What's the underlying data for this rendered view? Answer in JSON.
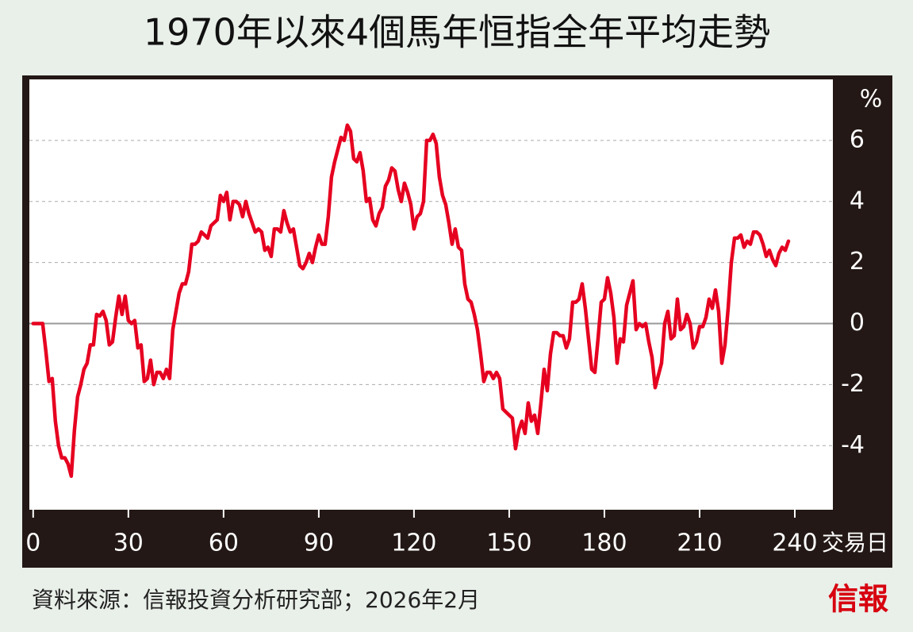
{
  "chart_data": {
    "type": "line",
    "title": "1970年以來4個馬年恒指全年平均走勢",
    "x_label": "交易日",
    "y_label": "%",
    "source": "資料來源：信報投資分析研究部；2026年2月",
    "brand": "信報",
    "color": "#e60020",
    "grid": true,
    "xlim": [
      -1.2,
      252
    ],
    "ylim": [
      -6.1,
      8
    ],
    "xticks": [
      0,
      30,
      60,
      90,
      120,
      150,
      180,
      210,
      240
    ],
    "yticks": [
      -4,
      -2,
      0,
      2,
      4,
      6
    ],
    "x": [
      0,
      1,
      2,
      3,
      4,
      5,
      6,
      7,
      8,
      9,
      10,
      11,
      12,
      13,
      14,
      15,
      16,
      17,
      18,
      19,
      20,
      21,
      22,
      23,
      24,
      25,
      26,
      27,
      28,
      29,
      30,
      31,
      32,
      33,
      34,
      35,
      36,
      37,
      38,
      39,
      40,
      41,
      42,
      43,
      44,
      45,
      46,
      47,
      48,
      49,
      50,
      51,
      52,
      53,
      54,
      55,
      56,
      57,
      58,
      59,
      60,
      61,
      62,
      63,
      64,
      65,
      66,
      67,
      68,
      69,
      70,
      71,
      72,
      73,
      74,
      75,
      76,
      77,
      78,
      79,
      80,
      81,
      82,
      83,
      84,
      85,
      86,
      87,
      88,
      89,
      90,
      91,
      92,
      93,
      94,
      95,
      96,
      97,
      98,
      99,
      100,
      101,
      102,
      103,
      104,
      105,
      106,
      107,
      108,
      109,
      110,
      111,
      112,
      113,
      114,
      115,
      116,
      117,
      118,
      119,
      120,
      121,
      122,
      123,
      124,
      125,
      126,
      127,
      128,
      129,
      130,
      131,
      132,
      133,
      134,
      135,
      136,
      137,
      138,
      139,
      140,
      141,
      142,
      143,
      144,
      145,
      146,
      147,
      148,
      149,
      150,
      151,
      152,
      153,
      154,
      155,
      156,
      157,
      158,
      159,
      160,
      161,
      162,
      163,
      164,
      165,
      166,
      167,
      168,
      169,
      170,
      171,
      172,
      173,
      174,
      175,
      176,
      177,
      178,
      179,
      180,
      181,
      182,
      183,
      184,
      185,
      186,
      187,
      188,
      189,
      190,
      191,
      192,
      193,
      194,
      195,
      196,
      197,
      198,
      199,
      200,
      201,
      202,
      203,
      204,
      205,
      206,
      207,
      208,
      209,
      210,
      211,
      212,
      213,
      214,
      215,
      216,
      217,
      218,
      219,
      220,
      221,
      222,
      223,
      224,
      225,
      226,
      227,
      228,
      229,
      230,
      231,
      232,
      233,
      234,
      235,
      236,
      237,
      238
    ],
    "values": [
      0,
      0,
      0,
      0,
      -0.9,
      -1.9,
      -1.8,
      -3.2,
      -4.0,
      -4.4,
      -4.4,
      -4.6,
      -5.0,
      -3.5,
      -2.4,
      -2.0,
      -1.5,
      -1.3,
      -0.7,
      -0.7,
      0.3,
      0.25,
      0.4,
      0.1,
      -0.7,
      -0.6,
      0.2,
      0.9,
      0.3,
      0.9,
      0.1,
      0.0,
      0.1,
      -0.8,
      -0.7,
      -1.9,
      -1.8,
      -1.2,
      -2.0,
      -1.6,
      -1.6,
      -1.8,
      -1.5,
      -1.8,
      -0.2,
      0.4,
      1.0,
      1.3,
      1.3,
      1.7,
      2.6,
      2.6,
      2.7,
      3.0,
      2.9,
      2.8,
      3.2,
      3.3,
      3.4,
      4.2,
      4.0,
      4.3,
      3.4,
      4.0,
      4.0,
      3.9,
      3.5,
      4.0,
      3.6,
      3.3,
      3.0,
      3.1,
      3.0,
      2.4,
      2.5,
      2.2,
      3.1,
      3.1,
      3.0,
      3.7,
      3.3,
      3.0,
      3.1,
      2.5,
      1.9,
      1.8,
      2.0,
      2.3,
      2.0,
      2.5,
      2.9,
      2.6,
      2.6,
      3.5,
      4.8,
      5.3,
      5.7,
      6.1,
      6.0,
      6.5,
      6.3,
      5.4,
      5.3,
      5.6,
      5.0,
      4.0,
      4.1,
      3.4,
      3.2,
      3.6,
      3.8,
      4.5,
      4.7,
      5.1,
      5.0,
      4.4,
      4.0,
      4.6,
      4.3,
      3.9,
      3.1,
      3.5,
      3.6,
      4.0,
      6.0,
      6.0,
      6.2,
      5.9,
      4.8,
      4.2,
      3.9,
      3.3,
      2.6,
      3.1,
      2.5,
      2.4,
      1.3,
      0.8,
      0.7,
      0.3,
      -0.2,
      -1.0,
      -1.9,
      -1.6,
      -1.6,
      -1.8,
      -1.6,
      -1.8,
      -2.8,
      -2.9,
      -3.0,
      -3.1,
      -4.1,
      -3.5,
      -3.2,
      -3.6,
      -2.6,
      -3.2,
      -3.0,
      -3.6,
      -2.6,
      -1.5,
      -2.2,
      -1.0,
      -0.3,
      -0.3,
      -0.4,
      -0.4,
      -0.8,
      -0.5,
      0.7,
      0.7,
      0.8,
      1.3,
      0.5,
      -0.5,
      -1.5,
      -1.6,
      -0.5,
      0.7,
      0.8,
      1.5,
      1.0,
      0.2,
      -1.3,
      -0.5,
      -0.6,
      0.6,
      1.0,
      1.4,
      -0.2,
      0.0,
      -0.1,
      0.0,
      -0.6,
      -1.1,
      -2.1,
      -1.7,
      -1.3,
      0.0,
      0.4,
      -0.5,
      -0.4,
      0.8,
      -0.2,
      -0.1,
      0.3,
      0.0,
      -0.8,
      -0.6,
      -0.1,
      -0.1,
      0.2,
      0.8,
      0.5,
      1.1,
      0.4,
      -1.3,
      -0.7,
      0.5,
      2.0,
      2.8,
      2.8,
      2.9,
      2.5,
      2.7,
      2.6,
      3.0,
      3.0,
      2.9,
      2.6,
      2.2,
      2.4,
      2.1,
      1.9,
      2.3,
      2.5,
      2.4,
      2.7
    ]
  }
}
